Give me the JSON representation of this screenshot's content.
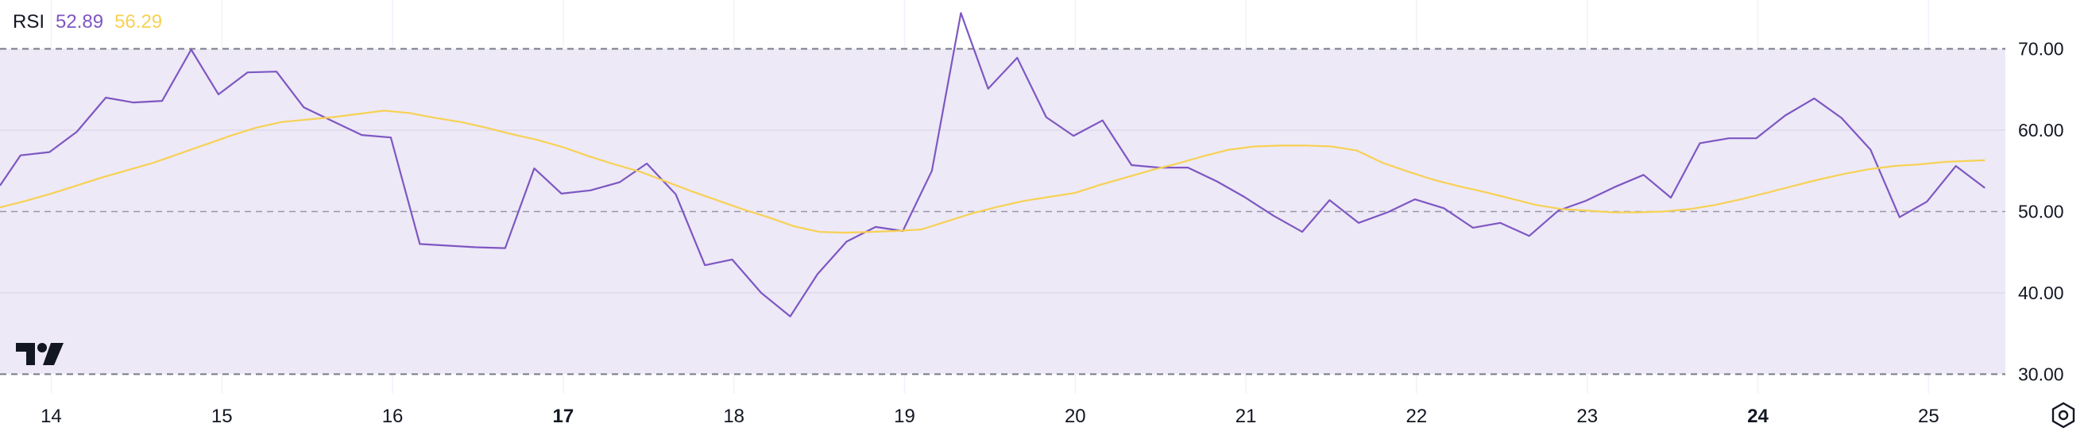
{
  "indicator": {
    "name": "RSI",
    "rsi_value": "52.89",
    "ma_value": "56.29",
    "rsi_color": "#7e57c2",
    "ma_color": "#f7d154"
  },
  "icons": {
    "logo": "tradingview-logo-icon",
    "settings": "settings-gear-icon"
  },
  "chart_data": {
    "type": "line",
    "ylim": [
      27.6,
      76.0
    ],
    "xlim": [
      13.7,
      25.45
    ],
    "y_ticks": [
      "70.00",
      "60.00",
      "50.00",
      "40.00",
      "30.00"
    ],
    "y_tick_values": [
      70,
      60,
      50,
      40,
      30
    ],
    "x_ticks": [
      {
        "label": "14",
        "x": 14,
        "bold": false
      },
      {
        "label": "15",
        "x": 15,
        "bold": false
      },
      {
        "label": "16",
        "x": 16,
        "bold": false
      },
      {
        "label": "17",
        "x": 17,
        "bold": true
      },
      {
        "label": "18",
        "x": 18,
        "bold": false
      },
      {
        "label": "19",
        "x": 19,
        "bold": false
      },
      {
        "label": "20",
        "x": 20,
        "bold": false
      },
      {
        "label": "21",
        "x": 21,
        "bold": false
      },
      {
        "label": "22",
        "x": 22,
        "bold": false
      },
      {
        "label": "23",
        "x": 23,
        "bold": false
      },
      {
        "label": "24",
        "x": 24,
        "bold": true
      },
      {
        "label": "25",
        "x": 25,
        "bold": false
      }
    ],
    "band": {
      "upper": 70,
      "middle": 50,
      "lower": 30,
      "fill": "#ede9f7",
      "line_color": "#787b86"
    },
    "grid": true,
    "series": [
      {
        "key": "rsi",
        "color": "#7e57c2",
        "points": [
          [
            13.7,
            53.2
          ],
          [
            13.82,
            56.9
          ],
          [
            13.99,
            57.3
          ],
          [
            14.15,
            59.8
          ],
          [
            14.32,
            64.0
          ],
          [
            14.48,
            63.4
          ],
          [
            14.65,
            63.6
          ],
          [
            14.82,
            69.9
          ],
          [
            14.98,
            64.4
          ],
          [
            15.15,
            67.1
          ],
          [
            15.32,
            67.2
          ],
          [
            15.48,
            62.8
          ],
          [
            15.65,
            61.1
          ],
          [
            15.82,
            59.4
          ],
          [
            15.99,
            59.1
          ],
          [
            16.16,
            46.0
          ],
          [
            16.33,
            45.8
          ],
          [
            16.49,
            45.6
          ],
          [
            16.66,
            45.5
          ],
          [
            16.83,
            55.3
          ],
          [
            16.99,
            52.2
          ],
          [
            17.16,
            52.6
          ],
          [
            17.33,
            53.6
          ],
          [
            17.49,
            55.9
          ],
          [
            17.66,
            52.1
          ],
          [
            17.83,
            43.4
          ],
          [
            17.99,
            44.1
          ],
          [
            18.16,
            40.0
          ],
          [
            18.33,
            37.1
          ],
          [
            18.49,
            42.3
          ],
          [
            18.66,
            46.3
          ],
          [
            18.83,
            48.1
          ],
          [
            18.99,
            47.6
          ],
          [
            19.16,
            55.0
          ],
          [
            19.33,
            74.4
          ],
          [
            19.49,
            65.1
          ],
          [
            19.66,
            68.9
          ],
          [
            19.83,
            61.6
          ],
          [
            19.99,
            59.3
          ],
          [
            20.16,
            61.2
          ],
          [
            20.33,
            55.7
          ],
          [
            20.49,
            55.4
          ],
          [
            20.66,
            55.4
          ],
          [
            20.83,
            53.7
          ],
          [
            20.99,
            51.8
          ],
          [
            21.16,
            49.5
          ],
          [
            21.33,
            47.5
          ],
          [
            21.49,
            51.4
          ],
          [
            21.66,
            48.6
          ],
          [
            21.83,
            49.9
          ],
          [
            21.99,
            51.5
          ],
          [
            22.16,
            50.4
          ],
          [
            22.33,
            48.0
          ],
          [
            22.49,
            48.6
          ],
          [
            22.66,
            47.0
          ],
          [
            22.83,
            50.1
          ],
          [
            22.99,
            51.3
          ],
          [
            23.16,
            53.0
          ],
          [
            23.33,
            54.5
          ],
          [
            23.49,
            51.7
          ],
          [
            23.66,
            58.4
          ],
          [
            23.83,
            59.0
          ],
          [
            23.99,
            59.0
          ],
          [
            24.16,
            61.8
          ],
          [
            24.33,
            63.9
          ],
          [
            24.49,
            61.5
          ],
          [
            24.66,
            57.6
          ],
          [
            24.83,
            49.3
          ],
          [
            24.99,
            51.2
          ],
          [
            25.16,
            55.6
          ],
          [
            25.33,
            52.9
          ]
        ]
      },
      {
        "key": "ma",
        "color": "#f7d154",
        "points": [
          [
            13.7,
            50.5
          ],
          [
            13.85,
            51.3
          ],
          [
            14.0,
            52.2
          ],
          [
            14.15,
            53.2
          ],
          [
            14.3,
            54.2
          ],
          [
            14.45,
            55.1
          ],
          [
            14.6,
            56.0
          ],
          [
            14.75,
            57.1
          ],
          [
            14.9,
            58.2
          ],
          [
            15.05,
            59.3
          ],
          [
            15.2,
            60.3
          ],
          [
            15.35,
            61.0
          ],
          [
            15.5,
            61.3
          ],
          [
            15.65,
            61.6
          ],
          [
            15.8,
            62.0
          ],
          [
            15.95,
            62.4
          ],
          [
            16.1,
            62.1
          ],
          [
            16.25,
            61.5
          ],
          [
            16.4,
            61.0
          ],
          [
            16.55,
            60.3
          ],
          [
            16.7,
            59.5
          ],
          [
            16.85,
            58.8
          ],
          [
            17.0,
            57.9
          ],
          [
            17.15,
            56.8
          ],
          [
            17.3,
            55.8
          ],
          [
            17.45,
            54.9
          ],
          [
            17.6,
            53.7
          ],
          [
            17.75,
            52.5
          ],
          [
            17.9,
            51.4
          ],
          [
            18.05,
            50.3
          ],
          [
            18.2,
            49.3
          ],
          [
            18.35,
            48.2
          ],
          [
            18.5,
            47.5
          ],
          [
            18.65,
            47.4
          ],
          [
            18.8,
            47.5
          ],
          [
            18.95,
            47.6
          ],
          [
            19.1,
            47.8
          ],
          [
            19.25,
            48.8
          ],
          [
            19.4,
            49.8
          ],
          [
            19.55,
            50.6
          ],
          [
            19.7,
            51.3
          ],
          [
            19.85,
            51.8
          ],
          [
            20.0,
            52.3
          ],
          [
            20.15,
            53.3
          ],
          [
            20.3,
            54.2
          ],
          [
            20.45,
            55.1
          ],
          [
            20.6,
            55.9
          ],
          [
            20.75,
            56.8
          ],
          [
            20.9,
            57.6
          ],
          [
            21.05,
            58.0
          ],
          [
            21.2,
            58.1
          ],
          [
            21.35,
            58.1
          ],
          [
            21.5,
            58.0
          ],
          [
            21.65,
            57.5
          ],
          [
            21.8,
            56.0
          ],
          [
            21.95,
            54.9
          ],
          [
            22.1,
            53.9
          ],
          [
            22.25,
            53.1
          ],
          [
            22.4,
            52.4
          ],
          [
            22.55,
            51.6
          ],
          [
            22.7,
            50.8
          ],
          [
            22.85,
            50.3
          ],
          [
            23.0,
            50.1
          ],
          [
            23.15,
            49.9
          ],
          [
            23.3,
            49.9
          ],
          [
            23.45,
            50.0
          ],
          [
            23.6,
            50.3
          ],
          [
            23.75,
            50.8
          ],
          [
            23.9,
            51.5
          ],
          [
            24.05,
            52.3
          ],
          [
            24.2,
            53.1
          ],
          [
            24.35,
            53.9
          ],
          [
            24.5,
            54.6
          ],
          [
            24.65,
            55.2
          ],
          [
            24.8,
            55.6
          ],
          [
            24.95,
            55.8
          ],
          [
            25.1,
            56.1
          ],
          [
            25.33,
            56.3
          ]
        ]
      }
    ]
  }
}
